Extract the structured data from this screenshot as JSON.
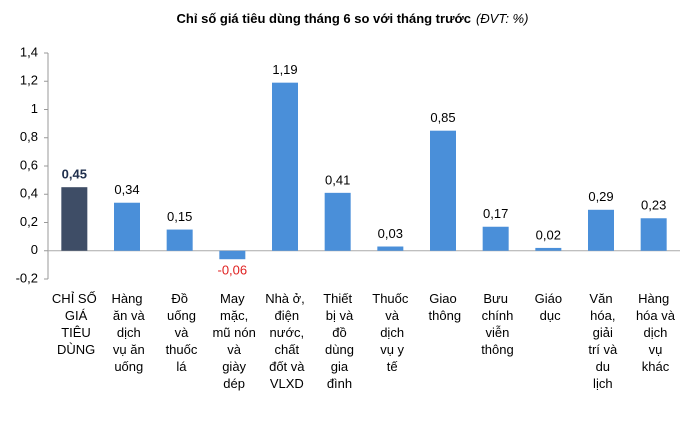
{
  "chart_data": {
    "type": "bar",
    "title": "Chỉ số giá tiêu dùng tháng 6 so với tháng trước",
    "subtitle": "(ĐVT: %)",
    "categories": [
      "CHỈ SỐ GIÁ TIÊU DÙNG",
      "Hàng ăn và dịch vụ ăn uống",
      "Đồ uống và thuốc lá",
      "May mặc, mũ nón và giày dép",
      "Nhà ở, điện nước, chất đốt và VLXD",
      "Thiết bị và đồ dùng gia đình",
      "Thuốc và dịch vụ y tế",
      "Giao thông",
      "Bưu chính viễn thông",
      "Giáo dục",
      "Văn hóa, giải trí và du lịch",
      "Hàng hóa và dịch vụ khác"
    ],
    "values": [
      0.45,
      0.34,
      0.15,
      -0.06,
      1.19,
      0.41,
      0.03,
      0.85,
      0.17,
      0.02,
      0.29,
      0.23
    ],
    "value_labels": [
      "0,45",
      "0,34",
      "0,15",
      "-0,06",
      "1,19",
      "0,41",
      "0,03",
      "0,85",
      "0,17",
      "0,02",
      "0,29",
      "0,23"
    ],
    "colors": [
      "#3e4d66",
      "#4a8fd9",
      "#4a8fd9",
      "#4a8fd9",
      "#4a8fd9",
      "#4a8fd9",
      "#4a8fd9",
      "#4a8fd9",
      "#4a8fd9",
      "#4a8fd9",
      "#4a8fd9",
      "#4a8fd9"
    ],
    "ylim": [
      -0.2,
      1.4
    ],
    "yticks": [
      {
        "value": -0.2,
        "label": "-0,2"
      },
      0,
      {
        "value": 0.2,
        "label": "0,2"
      },
      {
        "value": 0.4,
        "label": "0,4"
      },
      {
        "value": 0.6,
        "label": "0,6"
      },
      {
        "value": 0.8,
        "label": "0,8"
      },
      1,
      {
        "value": 1.2,
        "label": "1,2"
      },
      {
        "value": 1.4,
        "label": "1,4"
      }
    ],
    "grid": false
  }
}
